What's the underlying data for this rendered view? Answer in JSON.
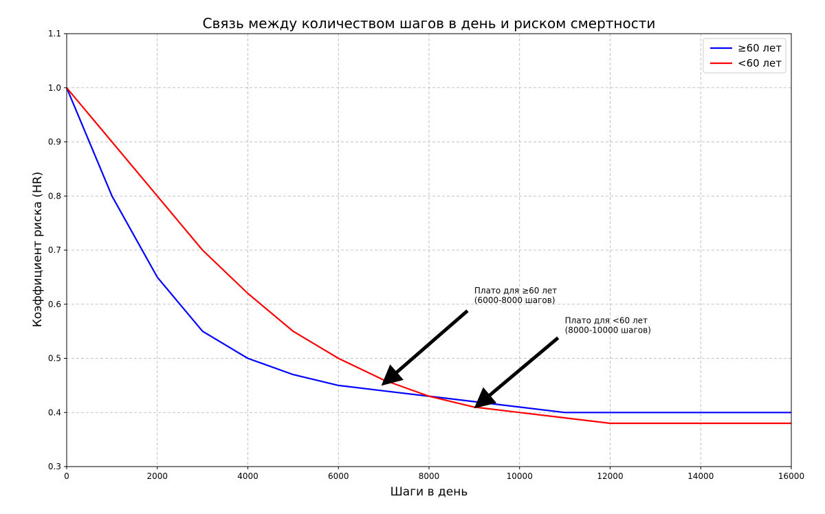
{
  "chart_data": {
    "type": "line",
    "title": "Связь между количеством шагов в день и риском смертности",
    "xlabel": "Шаги в день",
    "ylabel": "Коэффициент риска (HR)",
    "xlim": [
      0,
      16000
    ],
    "ylim": [
      0.3,
      1.1
    ],
    "xticks": [
      0,
      2000,
      4000,
      6000,
      8000,
      10000,
      12000,
      14000,
      16000
    ],
    "yticks": [
      0.3,
      0.4,
      0.5,
      0.6,
      0.7,
      0.8,
      0.9,
      1.0,
      1.1
    ],
    "ytick_labels": [
      "0.3",
      "0.4",
      "0.5",
      "0.6",
      "0.7",
      "0.8",
      "0.9",
      "1.0",
      "1.1"
    ],
    "grid": true,
    "legend_position": "top-right",
    "series": [
      {
        "name": "≥60 лет",
        "color": "#0000ff",
        "x": [
          0,
          1000,
          2000,
          3000,
          4000,
          5000,
          6000,
          7000,
          8000,
          9000,
          10000,
          11000,
          12000,
          13000,
          14000,
          15000,
          16000
        ],
        "y": [
          1.0,
          0.8,
          0.65,
          0.55,
          0.5,
          0.47,
          0.45,
          0.44,
          0.43,
          0.42,
          0.41,
          0.4,
          0.4,
          0.4,
          0.4,
          0.4,
          0.4
        ]
      },
      {
        "name": "<60 лет",
        "color": "#ff0000",
        "x": [
          0,
          1000,
          2000,
          3000,
          4000,
          5000,
          6000,
          7000,
          8000,
          9000,
          10000,
          11000,
          12000,
          13000,
          14000,
          15000,
          16000
        ],
        "y": [
          1.0,
          0.9,
          0.8,
          0.7,
          0.62,
          0.55,
          0.5,
          0.46,
          0.43,
          0.41,
          0.4,
          0.39,
          0.38,
          0.38,
          0.38,
          0.38,
          0.38
        ]
      }
    ],
    "annotations": [
      {
        "lines": [
          "Плато для ≥60 лет",
          "(6000-8000 шагов)"
        ],
        "text_at": [
          9000,
          0.62
        ],
        "arrow_from": [
          8850,
          0.588
        ],
        "arrow_to": [
          7050,
          0.457
        ]
      },
      {
        "lines": [
          "Плато для <60 лет",
          "(8000-10000 шагов)"
        ],
        "text_at": [
          11000,
          0.565
        ],
        "arrow_from": [
          10850,
          0.538
        ],
        "arrow_to": [
          9100,
          0.415
        ]
      }
    ]
  }
}
